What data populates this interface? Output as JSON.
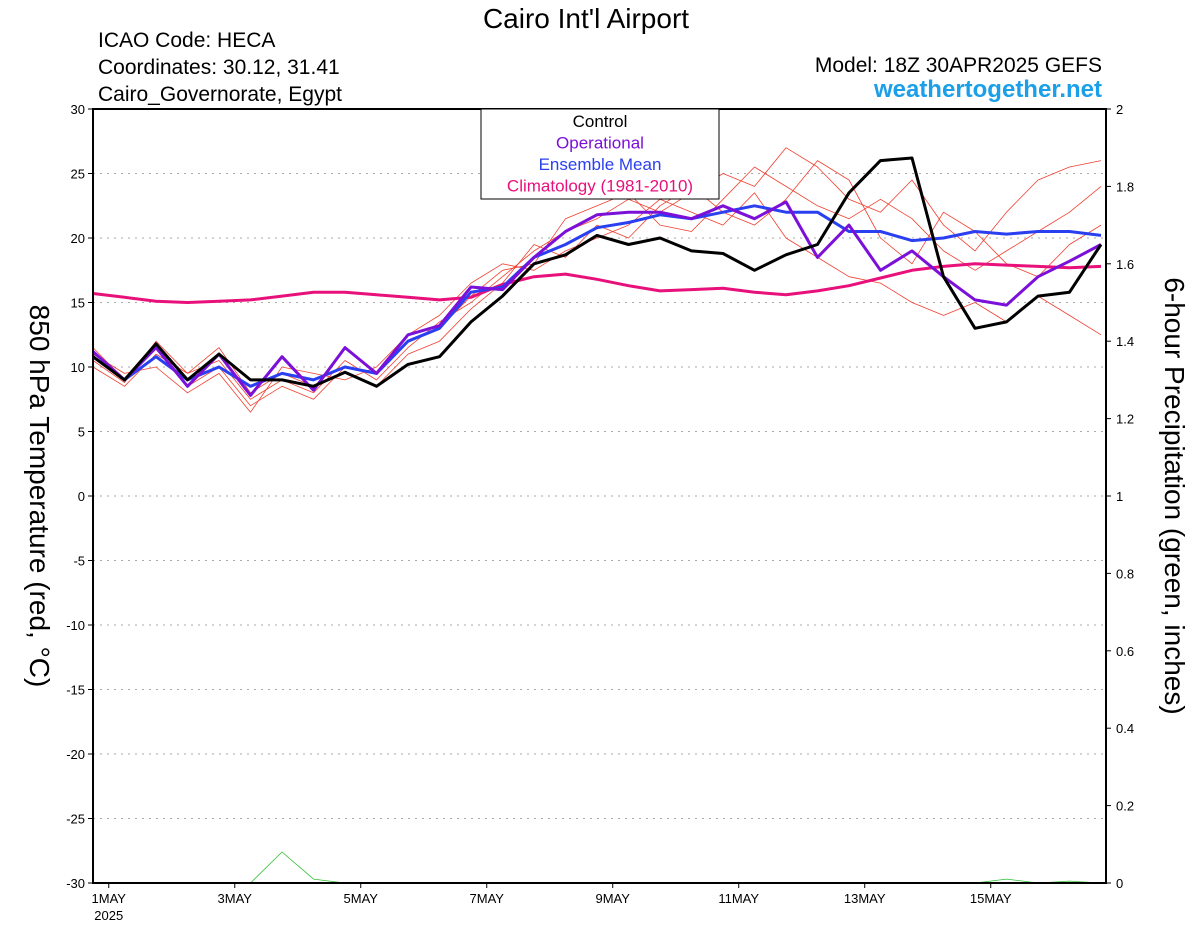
{
  "chart_data": {
    "type": "line",
    "title": "Cairo Int'l Airport",
    "info_lines": [
      "ICAO Code: HECA",
      "Coordinates: 30.12, 31.41",
      "Cairo_Governorate, Egypt"
    ],
    "model": "Model: 18Z 30APR2025 GEFS",
    "site": "weathertogether.net",
    "ylabel": "850 hPa Temperature (red, °C)",
    "y2label": "6-hour Precipitation (green, inches)",
    "x": [
      -0.25,
      0.25,
      0.75,
      1.25,
      1.75,
      2.25,
      2.75,
      3.25,
      3.75,
      4.25,
      4.75,
      5.25,
      5.75,
      6.25,
      6.75,
      7.25,
      7.75,
      8.25,
      8.75,
      9.25,
      9.75,
      10.25,
      10.75,
      11.25,
      11.75,
      12.25,
      12.75,
      13.25,
      13.75,
      14.25,
      14.75,
      15.25,
      15.75
    ],
    "xlim": [
      -0.25,
      15.83
    ],
    "xticks": [
      {
        "value": 0,
        "label": "1MAY"
      },
      {
        "value": 2,
        "label": "3MAY"
      },
      {
        "value": 4,
        "label": "5MAY"
      },
      {
        "value": 6,
        "label": "7MAY"
      },
      {
        "value": 8,
        "label": "9MAY"
      },
      {
        "value": 10,
        "label": "11MAY"
      },
      {
        "value": 12,
        "label": "13MAY"
      },
      {
        "value": 14,
        "label": "15MAY"
      }
    ],
    "xtick_year": "2025",
    "ylim": [
      -30,
      30
    ],
    "yticks": [
      -30,
      -25,
      -20,
      -15,
      -10,
      -5,
      0,
      5,
      10,
      15,
      20,
      25,
      30
    ],
    "y2lim": [
      0,
      2
    ],
    "y2ticks": [
      0,
      0.2,
      0.4,
      0.6,
      0.8,
      1,
      1.2,
      1.4,
      1.6,
      1.8,
      2
    ],
    "grid": true,
    "legend": "top",
    "series": [
      {
        "name": "Control",
        "color": "#000000",
        "width": 3,
        "values": [
          10.8,
          9.0,
          11.8,
          9.0,
          11.0,
          9.0,
          9.0,
          8.5,
          9.6,
          8.5,
          10.2,
          10.8,
          13.5,
          15.5,
          18.0,
          18.7,
          20.2,
          19.5,
          20.0,
          19.0,
          18.8,
          17.5,
          18.7,
          19.5,
          23.5,
          26.0,
          26.2,
          17.0,
          13.0,
          13.5,
          15.5,
          15.8,
          19.5
        ]
      },
      {
        "name": "Operational",
        "color": "#7b10d8",
        "width": 3,
        "values": [
          11.2,
          9.0,
          11.5,
          8.5,
          11.0,
          7.8,
          10.8,
          8.2,
          11.5,
          9.5,
          12.5,
          13.2,
          16.2,
          16.0,
          18.5,
          20.5,
          21.8,
          22.0,
          22.0,
          21.5,
          22.5,
          21.5,
          22.8,
          18.5,
          21.0,
          17.5,
          19.0,
          17.0,
          15.2,
          14.8,
          17.0,
          18.2,
          19.5
        ]
      },
      {
        "name": "Ensemble Mean",
        "color": "#2a3ff0",
        "width": 3,
        "values": [
          10.8,
          9.0,
          10.8,
          9.0,
          10.0,
          8.5,
          9.5,
          9.0,
          10.0,
          9.5,
          12.0,
          13.0,
          15.8,
          16.2,
          18.5,
          19.5,
          20.8,
          21.2,
          21.8,
          21.5,
          22.0,
          22.5,
          22.0,
          22.0,
          20.5,
          20.5,
          19.8,
          20.0,
          20.5,
          20.3,
          20.5,
          20.5,
          20.2
        ]
      },
      {
        "name": "Climatology (1981-2010)",
        "color": "#e8107a",
        "width": 3,
        "values": [
          15.7,
          15.4,
          15.1,
          15.0,
          15.1,
          15.2,
          15.5,
          15.8,
          15.8,
          15.6,
          15.4,
          15.2,
          15.4,
          16.4,
          17.0,
          17.2,
          16.8,
          16.3,
          15.9,
          16.0,
          16.1,
          15.8,
          15.6,
          15.9,
          16.3,
          16.9,
          17.5,
          17.8,
          18.0,
          17.9,
          17.8,
          17.7,
          17.8
        ]
      },
      {
        "color": "#f04030",
        "width": 0.8,
        "values": [
          10.5,
          8.8,
          12.0,
          9.5,
          10.5,
          7.5,
          9.0,
          8.0,
          10.5,
          9.0,
          11.5,
          13.5,
          15.0,
          17.0,
          19.0,
          20.5,
          21.5,
          23.0,
          22.0,
          23.5,
          25.0,
          24.0,
          27.0,
          25.5,
          23.0,
          22.0,
          24.5,
          21.0,
          19.0,
          22.0,
          24.5,
          25.5,
          26.0
        ]
      },
      {
        "color": "#f04030",
        "width": 0.8,
        "values": [
          11.0,
          9.5,
          10.0,
          8.0,
          9.5,
          6.5,
          10.0,
          9.5,
          9.0,
          10.0,
          12.5,
          14.0,
          16.5,
          18.0,
          17.5,
          19.0,
          20.0,
          21.0,
          23.0,
          22.0,
          21.0,
          23.5,
          20.0,
          18.5,
          17.0,
          16.5,
          15.0,
          14.0,
          15.0,
          13.5,
          15.5,
          14.0,
          12.5
        ]
      },
      {
        "color": "#f04030",
        "width": 0.8,
        "values": [
          10.0,
          8.5,
          11.0,
          9.5,
          11.5,
          8.0,
          9.5,
          8.5,
          9.5,
          8.5,
          11.0,
          12.0,
          14.5,
          16.5,
          19.5,
          18.5,
          21.0,
          20.0,
          22.5,
          24.0,
          22.0,
          21.0,
          23.0,
          26.0,
          24.5,
          20.0,
          18.0,
          22.0,
          20.5,
          18.0,
          17.0,
          19.5,
          21.0
        ]
      },
      {
        "color": "#f04030",
        "width": 0.8,
        "values": [
          11.5,
          9.0,
          11.5,
          8.5,
          10.0,
          7.0,
          8.5,
          7.5,
          10.0,
          9.5,
          12.0,
          13.0,
          15.5,
          17.5,
          18.0,
          21.5,
          22.5,
          23.5,
          21.0,
          20.5,
          23.0,
          25.5,
          24.0,
          22.5,
          21.5,
          23.0,
          21.5,
          19.0,
          17.5,
          19.0,
          20.5,
          22.0,
          24.0
        ]
      },
      {
        "color": "#30c030",
        "width": 0.8,
        "axis": "y2",
        "values": [
          0,
          0,
          0,
          0,
          0,
          0,
          0.08,
          0.01,
          0,
          0,
          0,
          0,
          0,
          0,
          0,
          0,
          0,
          0,
          0,
          0,
          0,
          0,
          0,
          0,
          0,
          0,
          0,
          0,
          0,
          0.01,
          0,
          0.005,
          0
        ]
      }
    ]
  }
}
